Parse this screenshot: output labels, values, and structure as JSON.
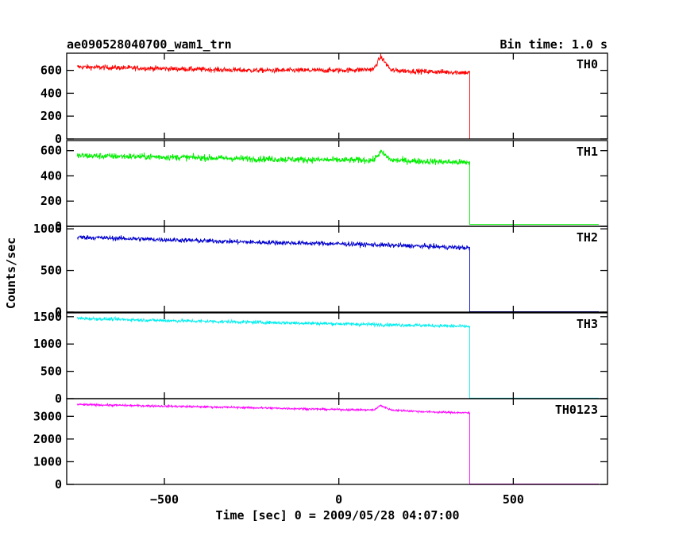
{
  "chart_data": {
    "type": "line",
    "title_left": "ae090528040700_wam1_trn",
    "title_right": "Bin time: 1.0 s",
    "xlabel": "Time [sec] 0 = 2009/05/28 04:07:00",
    "ylabel": "Counts/sec",
    "xlim": [
      -780,
      770
    ],
    "x_ticks": [
      -500,
      0,
      500
    ],
    "x_tick_labels": [
      "−500",
      "0",
      "500"
    ],
    "grid": false,
    "cutoff_time": 375,
    "data_start": -750,
    "data_end": 745,
    "panels": [
      {
        "name": "TH0",
        "color": "#ff0000",
        "ylim": [
          0,
          750
        ],
        "yticks": [
          0,
          200,
          400,
          600
        ],
        "y_tick_labels": [
          "0",
          "200",
          "400",
          "600"
        ],
        "x": [
          -750,
          -500,
          -250,
          0,
          100,
          120,
          150,
          250,
          375
        ],
        "values": [
          630,
          615,
          600,
          600,
          610,
          720,
          600,
          590,
          580
        ],
        "noise": 40,
        "after_cutoff": 0
      },
      {
        "name": "TH1",
        "color": "#00ee00",
        "ylim": [
          0,
          680
        ],
        "yticks": [
          0,
          200,
          400,
          600
        ],
        "y_tick_labels": [
          "0",
          "200",
          "400",
          "600"
        ],
        "x": [
          -750,
          -500,
          -250,
          0,
          100,
          120,
          150,
          250,
          375
        ],
        "values": [
          560,
          550,
          535,
          525,
          525,
          590,
          525,
          515,
          505
        ],
        "noise": 45,
        "after_cutoff": 15
      },
      {
        "name": "TH2",
        "color": "#0000cc",
        "ylim": [
          0,
          1030
        ],
        "yticks": [
          0,
          500,
          1000
        ],
        "y_tick_labels": [
          "0",
          "500",
          "1000"
        ],
        "x": [
          -750,
          -500,
          -250,
          0,
          250,
          375
        ],
        "values": [
          900,
          870,
          840,
          820,
          790,
          770
        ],
        "noise": 50,
        "after_cutoff": 5
      },
      {
        "name": "TH3",
        "color": "#00eeee",
        "ylim": [
          0,
          1570
        ],
        "yticks": [
          0,
          500,
          1000,
          1500
        ],
        "y_tick_labels": [
          "0",
          "500",
          "1000",
          "1500"
        ],
        "x": [
          -750,
          -500,
          -250,
          0,
          250,
          375
        ],
        "values": [
          1470,
          1430,
          1400,
          1370,
          1340,
          1320
        ],
        "noise": 55,
        "after_cutoff": 10
      },
      {
        "name": "TH0123",
        "color": "#ff00ff",
        "ylim": [
          0,
          3780
        ],
        "yticks": [
          0,
          1000,
          2000,
          3000
        ],
        "y_tick_labels": [
          "0",
          "1000",
          "2000",
          "3000"
        ],
        "x": [
          -750,
          -500,
          -250,
          0,
          100,
          120,
          150,
          250,
          375
        ],
        "values": [
          3520,
          3450,
          3380,
          3300,
          3280,
          3480,
          3280,
          3200,
          3150
        ],
        "noise": 80,
        "after_cutoff": 20
      }
    ]
  }
}
